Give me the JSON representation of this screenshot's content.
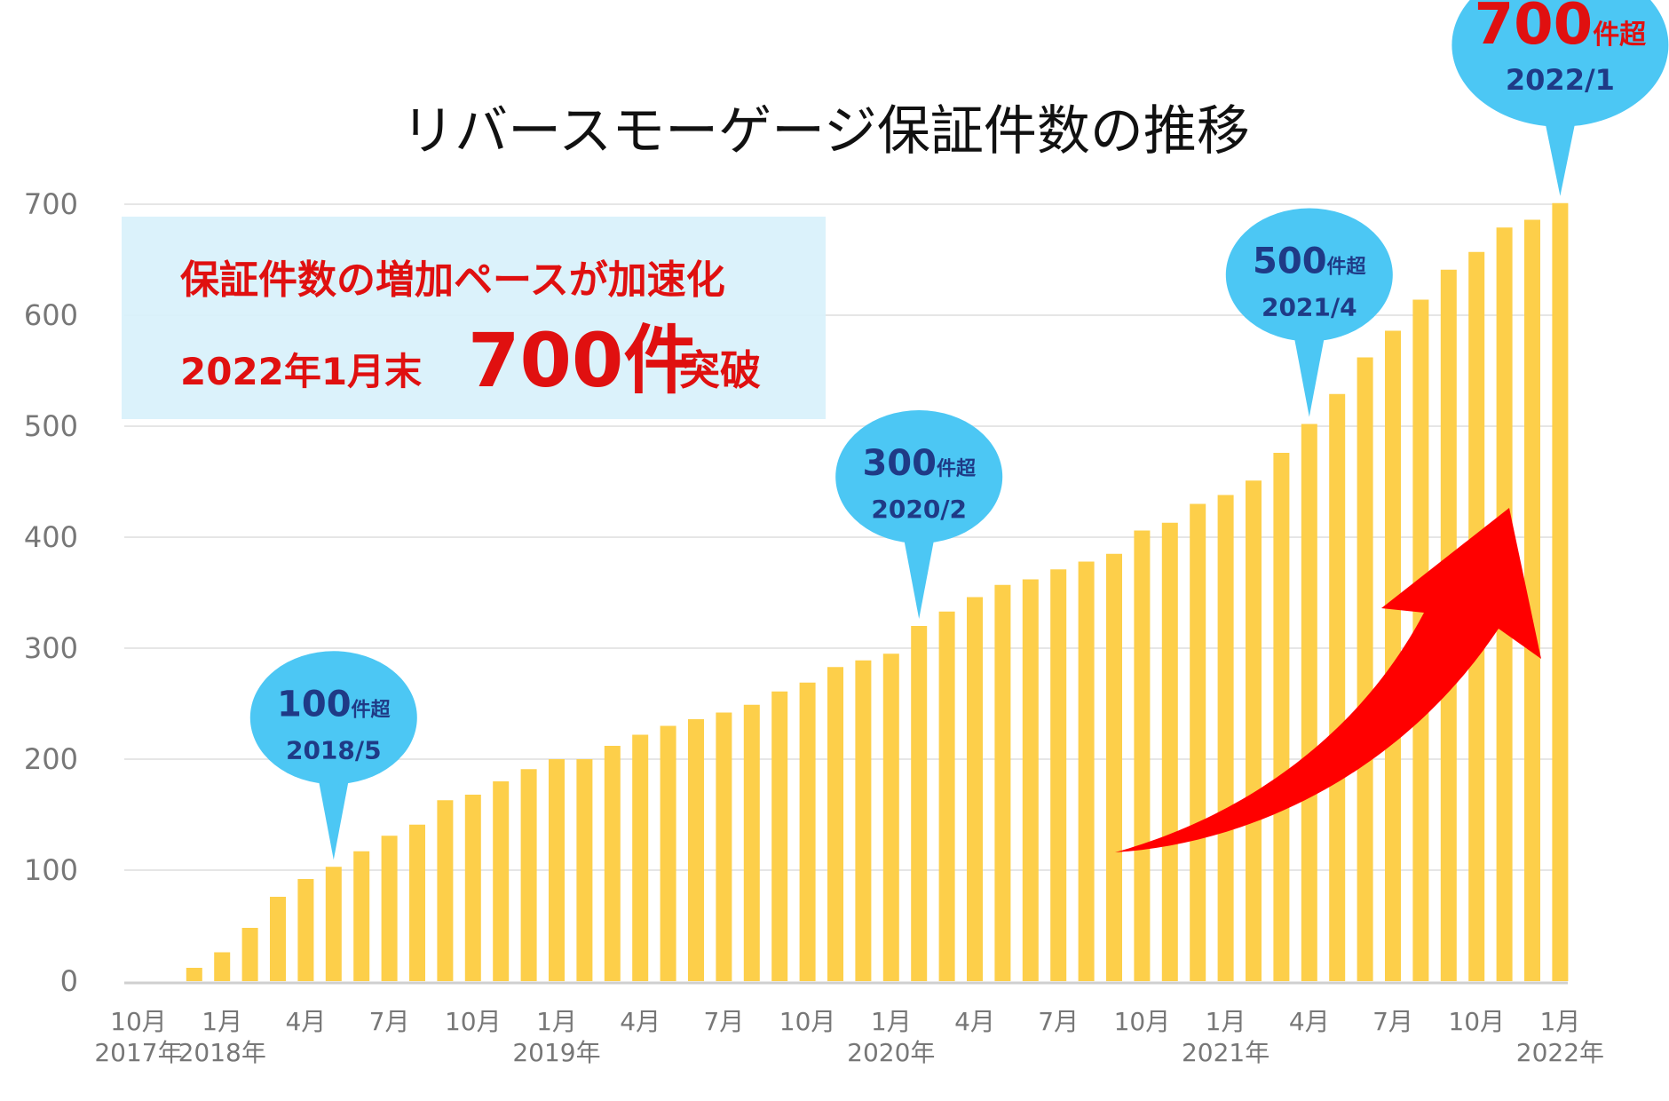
{
  "chart_data": {
    "type": "bar",
    "title": "リバースモーゲージ保証件数の推移",
    "ylim": [
      0,
      700
    ],
    "yticks": [
      "0",
      "100",
      "200",
      "300",
      "400",
      "500",
      "600",
      "700"
    ],
    "grid": true,
    "categories": [
      "2017/10",
      "2017/11",
      "2017/12",
      "2018/1",
      "2018/2",
      "2018/3",
      "2018/4",
      "2018/5",
      "2018/6",
      "2018/7",
      "2018/8",
      "2018/9",
      "2018/10",
      "2018/11",
      "2018/12",
      "2019/1",
      "2019/2",
      "2019/3",
      "2019/4",
      "2019/5",
      "2019/6",
      "2019/7",
      "2019/8",
      "2019/9",
      "2019/10",
      "2019/11",
      "2019/12",
      "2020/1",
      "2020/2",
      "2020/3",
      "2020/4",
      "2020/5",
      "2020/6",
      "2020/7",
      "2020/8",
      "2020/9",
      "2020/10",
      "2020/11",
      "2020/12",
      "2021/1",
      "2021/2",
      "2021/3",
      "2021/4",
      "2021/5",
      "2021/6",
      "2021/7",
      "2021/8",
      "2021/9",
      "2021/10",
      "2021/11",
      "2021/12",
      "2022/1"
    ],
    "values": [
      0,
      0,
      12,
      26,
      48,
      76,
      92,
      103,
      117,
      131,
      141,
      163,
      168,
      180,
      191,
      200,
      200,
      212,
      222,
      230,
      236,
      242,
      249,
      261,
      269,
      283,
      289,
      295,
      320,
      333,
      346,
      357,
      362,
      371,
      378,
      385,
      406,
      413,
      430,
      438,
      451,
      476,
      502,
      529,
      562,
      586,
      614,
      641,
      657,
      679,
      686,
      701
    ],
    "x_tick_labels": [
      {
        "month": "10月",
        "year": "2017年",
        "index": 0
      },
      {
        "month": "1月",
        "year": "2018年",
        "index": 3
      },
      {
        "month": "4月",
        "year": "",
        "index": 6
      },
      {
        "month": "7月",
        "year": "",
        "index": 9
      },
      {
        "month": "10月",
        "year": "",
        "index": 12
      },
      {
        "month": "1月",
        "year": "2019年",
        "index": 15
      },
      {
        "month": "4月",
        "year": "",
        "index": 18
      },
      {
        "month": "7月",
        "year": "",
        "index": 21
      },
      {
        "month": "10月",
        "year": "",
        "index": 24
      },
      {
        "month": "1月",
        "year": "2020年",
        "index": 27
      },
      {
        "month": "4月",
        "year": "",
        "index": 30
      },
      {
        "month": "7月",
        "year": "",
        "index": 33
      },
      {
        "month": "10月",
        "year": "",
        "index": 36
      },
      {
        "month": "1月",
        "year": "2021年",
        "index": 39
      },
      {
        "month": "4月",
        "year": "",
        "index": 42
      },
      {
        "month": "7月",
        "year": "",
        "index": 45
      },
      {
        "month": "10月",
        "year": "",
        "index": 48
      },
      {
        "month": "1月",
        "year": "2022年",
        "index": 51
      }
    ],
    "annotations": [
      {
        "number": "100",
        "suffix": "件超",
        "date": "2018/5",
        "index": 7,
        "red": false
      },
      {
        "number": "300",
        "suffix": "件超",
        "date": "2020/2",
        "index": 28,
        "red": false
      },
      {
        "number": "500",
        "suffix": "件超",
        "date": "2021/4",
        "index": 42,
        "red": false
      },
      {
        "number": "700",
        "suffix": "件超",
        "date": "2022/1",
        "index": 51,
        "red": true
      }
    ],
    "note": {
      "line1": "保証件数の増加ペースが加速化",
      "line2_prefix": "2022年1月末",
      "line2_big": "700件",
      "line2_suffix": "突破"
    }
  },
  "colors": {
    "bar": "#fdcf4a",
    "callout": "#4cc7f4",
    "arrow": "#ff0000",
    "note_bg": "#d8f1fb",
    "text_red": "#e01010",
    "text_navy": "#1f3a86"
  }
}
